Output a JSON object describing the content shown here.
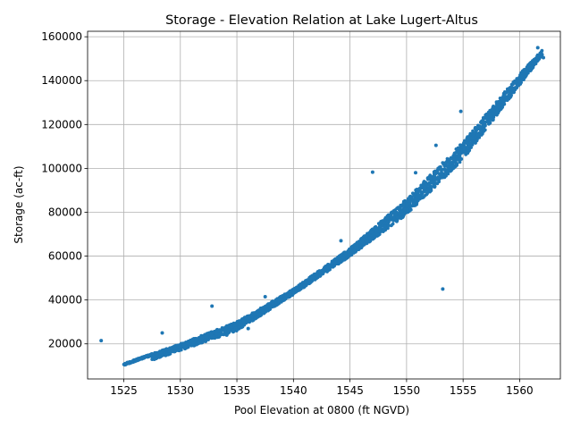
{
  "chart_data": {
    "type": "scatter",
    "title": "Storage - Elevation Relation at Lake Lugert-Altus",
    "xlabel": "Pool Elevation at 0800 (ft NGVD)",
    "ylabel": "Storage (ac-ft)",
    "xlim": [
      1521.8,
      1563.6
    ],
    "ylim": [
      4000,
      162500
    ],
    "xticks": [
      1525,
      1530,
      1535,
      1540,
      1545,
      1550,
      1555,
      1560
    ],
    "yticks": [
      20000,
      40000,
      60000,
      80000,
      100000,
      120000,
      140000,
      160000
    ],
    "grid": true,
    "color": "#1f77b4",
    "curve_band": {
      "x_range": [
        1525.0,
        1562.0
      ],
      "lower_series_anchor": [
        [
          1527.5,
          12500
        ],
        [
          1535,
          26000
        ],
        [
          1540,
          42500
        ],
        [
          1545,
          60000
        ],
        [
          1550,
          79000
        ],
        [
          1555,
          104000
        ],
        [
          1560,
          138000
        ]
      ],
      "upper_series_anchor": [
        [
          1525.0,
          11000
        ],
        [
          1530,
          20000
        ],
        [
          1535,
          30000
        ],
        [
          1540,
          45000
        ],
        [
          1545,
          63500
        ],
        [
          1550,
          86000
        ],
        [
          1555,
          112000
        ],
        [
          1560,
          143000
        ],
        [
          1562,
          154000
        ]
      ]
    },
    "outliers": [
      {
        "x": 1523.0,
        "y": 21500
      },
      {
        "x": 1528.4,
        "y": 25000
      },
      {
        "x": 1532.8,
        "y": 37200
      },
      {
        "x": 1536.0,
        "y": 27000
      },
      {
        "x": 1534.1,
        "y": 24000
      },
      {
        "x": 1547.0,
        "y": 98300
      },
      {
        "x": 1550.8,
        "y": 98000
      },
      {
        "x": 1553.2,
        "y": 45000
      },
      {
        "x": 1554.8,
        "y": 126000
      },
      {
        "x": 1552.6,
        "y": 110500
      },
      {
        "x": 1561.6,
        "y": 155000
      },
      {
        "x": 1562.1,
        "y": 150500
      },
      {
        "x": 1556.8,
        "y": 123000
      },
      {
        "x": 1544.2,
        "y": 67000
      },
      {
        "x": 1537.5,
        "y": 41500
      }
    ]
  }
}
